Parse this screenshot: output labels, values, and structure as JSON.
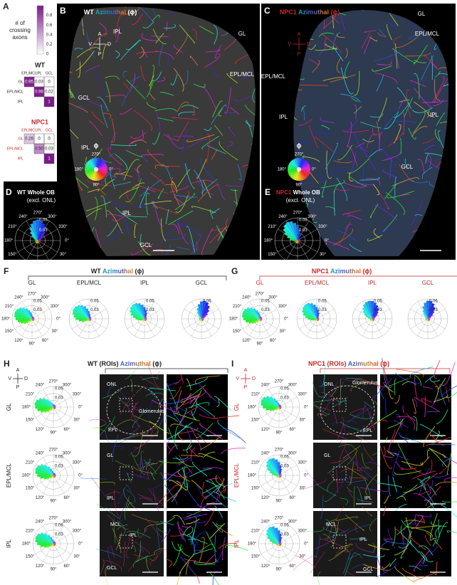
{
  "panel_a": {
    "letter": "A",
    "colorbar": {
      "title": "# of crossing axons",
      "ticks": [
        "0.8",
        "0.6",
        "0.4",
        "0.2",
        "0"
      ]
    },
    "matrices": [
      {
        "title": "WT",
        "columns": [
          "EPL/MCL",
          "IPL",
          "GCL"
        ],
        "rows": [
          {
            "label": "GL",
            "cells": [
              "0.95",
              "0.03",
              "0"
            ]
          },
          {
            "label": "EPL/MCL",
            "cells": [
              "0.98",
              "0.02"
            ]
          },
          {
            "label": "IPL",
            "cells": [
              "1"
            ]
          }
        ]
      },
      {
        "title": "NPC1",
        "columns": [
          "EPL/MCL",
          "IPL",
          "GCL"
        ],
        "rows": [
          {
            "label": "GL",
            "cells": [
              "0.26",
              "0",
              "0"
            ]
          },
          {
            "label": "EPL/MCL",
            "cells": [
              "0.50",
              "0.03"
            ]
          },
          {
            "label": "IPL",
            "cells": [
              "1"
            ]
          }
        ]
      }
    ]
  },
  "polar_angles": [
    "0°",
    "30°",
    "60°",
    "90°",
    "120°",
    "150°",
    "180°",
    "210°",
    "240°",
    "270°",
    "300°",
    "330°"
  ],
  "panel_b": {
    "letter": "B",
    "genotype": "WT",
    "measure": "Azimuthal",
    "symbol": "(ϕ)",
    "compass": [
      "A",
      "P",
      "V",
      "D"
    ],
    "regions": [
      "IPL",
      "GL",
      "EPL/MCL",
      "GCL",
      "IPL",
      "IPL",
      "GCL"
    ],
    "wheel": {
      "symbol": "ϕ",
      "labels": [
        "270°",
        "0°",
        "90°",
        "180°"
      ]
    }
  },
  "panel_c": {
    "letter": "C",
    "genotype": "NPC1",
    "measure": "Azimuthal",
    "symbol": "(ϕ)",
    "compass": [
      "A",
      "P",
      "V",
      "D"
    ],
    "regions": [
      "GL",
      "EPL/MCL",
      "EPL/MCL",
      "IPL",
      "IPL",
      "GCL"
    ],
    "wheel": {
      "symbol": "ϕ",
      "labels": [
        "270°",
        "0°",
        "90°",
        "180°"
      ]
    }
  },
  "panel_d": {
    "letter": "D",
    "genotype": "WT",
    "title": "Whole OB",
    "subtitle": "(excl. ONL)",
    "radial": [
      "0.05",
      "0.03"
    ]
  },
  "panel_e": {
    "letter": "E",
    "genotype": "NPC1",
    "title": "Whole OB",
    "subtitle": "(excl. ONL)",
    "radial": [
      "0.05",
      "0.03"
    ]
  },
  "panel_f": {
    "letter": "F",
    "genotype": "WT",
    "measure": "Azimuthal",
    "symbol": "(ϕ)",
    "plots": [
      {
        "label": "GL",
        "radial": [
          "0.05",
          "0.03"
        ]
      },
      {
        "label": "EPL/MCL",
        "radial": [
          "0.05",
          "0.03"
        ]
      },
      {
        "label": "IPL",
        "radial": [
          "0.05",
          "0.03"
        ]
      },
      {
        "label": "GCL",
        "radial": [
          "0.06"
        ]
      }
    ]
  },
  "panel_g": {
    "letter": "G",
    "genotype": "NPC1",
    "measure": "Azimuthal",
    "symbol": "(ϕ)",
    "plots": [
      {
        "label": "GL",
        "radial": [
          "0.05",
          "0.03"
        ]
      },
      {
        "label": "EPL/MCL",
        "radial": [
          "0.05",
          "0.03"
        ]
      },
      {
        "label": "IPL",
        "radial": [
          "0.05",
          "0.03"
        ]
      },
      {
        "label": "GCL",
        "radial": [
          "0.06",
          "0.03"
        ]
      }
    ]
  },
  "panel_h": {
    "letter": "H",
    "genotype": "WT",
    "roi": "(ROIs)",
    "measure": "Azimuthal",
    "symbol": "(ϕ)",
    "compass": [
      "A",
      "P",
      "V",
      "D"
    ],
    "rows": [
      {
        "label": "GL",
        "radial": [
          "0.05",
          "0.03"
        ],
        "image_labels": [
          "ONL",
          "EPL",
          "Glomerulus"
        ]
      },
      {
        "label": "EPL/MCL",
        "radial": [
          "0.05",
          "0.03"
        ],
        "image_labels": [
          "GL",
          "IPL"
        ]
      },
      {
        "label": "IPL",
        "radial": [
          "0.06",
          "0.03"
        ],
        "image_labels": [
          "MCL",
          "IPL",
          "GCL"
        ]
      }
    ]
  },
  "panel_i": {
    "letter": "I",
    "genotype": "NPC1",
    "roi": "(ROIs)",
    "measure": "Azimuthal",
    "symbol": "(ϕ)",
    "compass": [
      "A",
      "P",
      "V",
      "D"
    ],
    "rows": [
      {
        "label": "GL",
        "radial": [
          "0.05",
          "0.03"
        ],
        "image_labels": [
          "ONL",
          "Glomerulus",
          "EPL"
        ]
      },
      {
        "label": "EPL/MCL",
        "radial": [
          "0.05",
          "0.03"
        ],
        "image_labels": [
          "GL",
          "IPL"
        ]
      },
      {
        "label": "IPL",
        "radial": [
          "0.05",
          "0.03"
        ],
        "image_labels": [
          "MCL",
          "IPL",
          "GCL"
        ]
      }
    ]
  }
}
